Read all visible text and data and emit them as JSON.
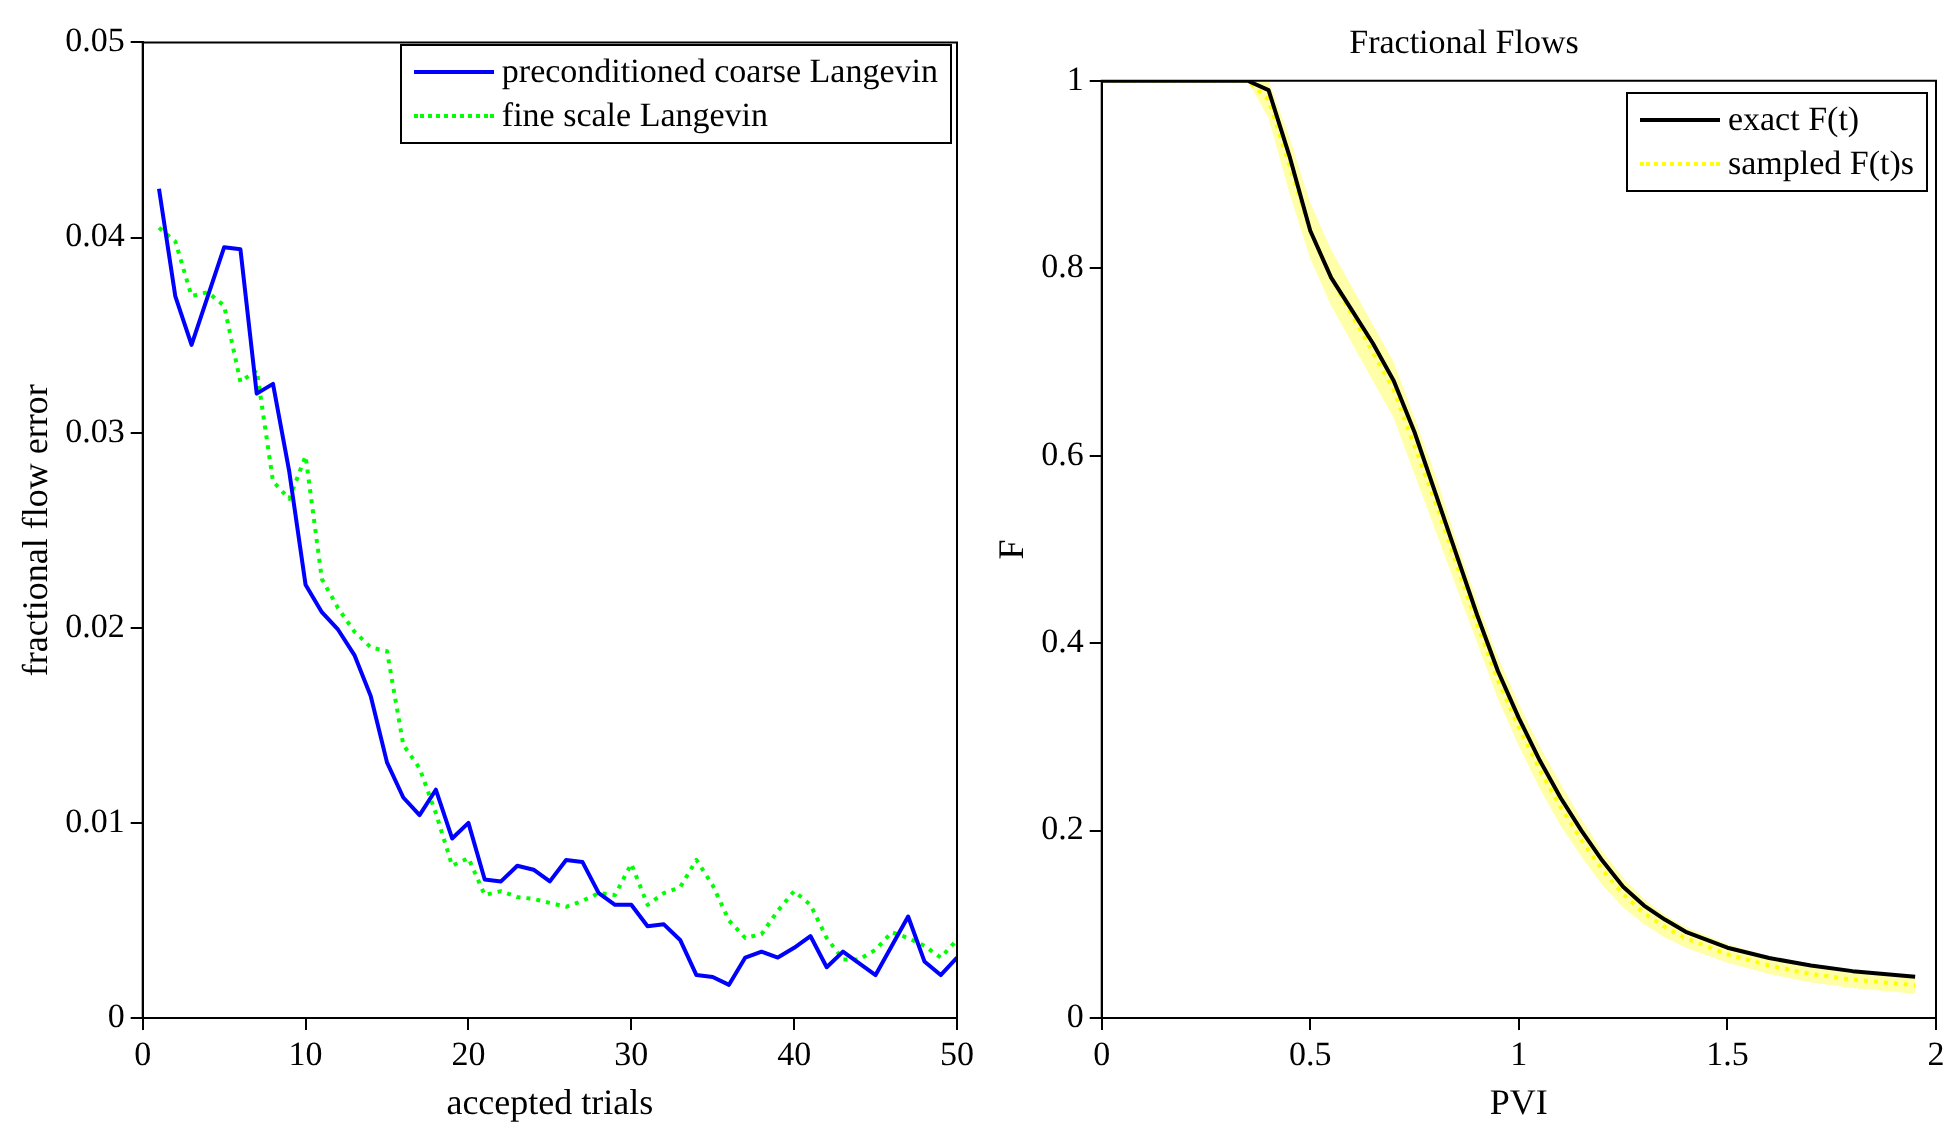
{
  "chart_data": [
    {
      "type": "line",
      "xlabel": "accepted trials",
      "ylabel": "fractional flow error",
      "x": [
        1,
        2,
        3,
        4,
        5,
        6,
        7,
        8,
        9,
        10,
        11,
        12,
        13,
        14,
        15,
        16,
        17,
        18,
        19,
        20,
        21,
        22,
        23,
        24,
        25,
        26,
        27,
        28,
        29,
        30,
        31,
        32,
        33,
        34,
        35,
        36,
        37,
        38,
        39,
        40,
        41,
        42,
        43,
        44,
        45,
        46,
        47,
        48,
        49,
        50
      ],
      "series": [
        {
          "name": "preconditioned coarse Langevin",
          "color": "#0000ff",
          "line_style": "solid",
          "values": [
            0.0425,
            0.037,
            0.0345,
            0.037,
            0.0395,
            0.0394,
            0.032,
            0.0325,
            0.028,
            0.0222,
            0.0208,
            0.0199,
            0.0186,
            0.0165,
            0.0131,
            0.0113,
            0.0104,
            0.0117,
            0.0092,
            0.01,
            0.0071,
            0.007,
            0.0078,
            0.0076,
            0.007,
            0.0081,
            0.008,
            0.0064,
            0.0058,
            0.0058,
            0.0047,
            0.0048,
            0.004,
            0.0022,
            0.0021,
            0.0017,
            0.0031,
            0.0034,
            0.0031,
            0.0036,
            0.0042,
            0.0026,
            0.0034,
            0.0028,
            0.0022,
            0.0037,
            0.0052,
            0.0029,
            0.0022,
            0.0031
          ]
        },
        {
          "name": "fine scale Langevin",
          "color": "#00ff00",
          "line_style": "dotted",
          "values": [
            0.0405,
            0.0398,
            0.037,
            0.0372,
            0.0365,
            0.0326,
            0.0332,
            0.0275,
            0.0266,
            0.0288,
            0.0225,
            0.021,
            0.0198,
            0.019,
            0.0188,
            0.014,
            0.0128,
            0.0105,
            0.0078,
            0.0082,
            0.0063,
            0.0065,
            0.0062,
            0.0061,
            0.0059,
            0.0057,
            0.006,
            0.0064,
            0.0063,
            0.0079,
            0.0058,
            0.0064,
            0.0067,
            0.0081,
            0.0068,
            0.005,
            0.0041,
            0.0043,
            0.0055,
            0.0065,
            0.0058,
            0.0041,
            0.003,
            0.003,
            0.0035,
            0.0044,
            0.0041,
            0.0037,
            0.0031,
            0.004
          ]
        }
      ],
      "xlim": [
        0,
        50
      ],
      "xticks": [
        0,
        10,
        20,
        30,
        40,
        50
      ],
      "ylim": [
        0,
        0.05
      ],
      "yticks": [
        0,
        0.01,
        0.02,
        0.03,
        0.04,
        0.05
      ],
      "grid": false,
      "legend": "top right"
    },
    {
      "type": "line",
      "title": "Fractional Flows",
      "xlabel": "PVI",
      "ylabel": "F",
      "series": [
        {
          "name": "exact F(t)",
          "color": "#000000",
          "line_style": "solid",
          "x": [
            0,
            0.35,
            0.4,
            0.45,
            0.5,
            0.55,
            0.6,
            0.65,
            0.7,
            0.75,
            0.8,
            0.85,
            0.9,
            0.95,
            1,
            1.05,
            1.1,
            1.15,
            1.2,
            1.25,
            1.3,
            1.35,
            1.4,
            1.5,
            1.6,
            1.7,
            1.8,
            1.95
          ],
          "values": [
            1,
            1,
            0.99,
            0.92,
            0.84,
            0.79,
            0.755,
            0.72,
            0.68,
            0.625,
            0.56,
            0.495,
            0.43,
            0.37,
            0.32,
            0.275,
            0.235,
            0.2,
            0.168,
            0.14,
            0.12,
            0.105,
            0.092,
            0.075,
            0.064,
            0.056,
            0.05,
            0.044
          ]
        },
        {
          "name": "sampled F(t)s",
          "color": "#ffff00",
          "line_style": "dotted",
          "x": [
            0,
            0.35,
            0.4,
            0.45,
            0.5,
            0.55,
            0.6,
            0.65,
            0.7,
            0.75,
            0.8,
            0.85,
            0.9,
            0.95,
            1,
            1.05,
            1.1,
            1.15,
            1.2,
            1.25,
            1.3,
            1.35,
            1.4,
            1.5,
            1.6,
            1.7,
            1.8,
            1.95
          ],
          "values": [
            1,
            1,
            0.98,
            0.91,
            0.84,
            0.79,
            0.75,
            0.71,
            0.67,
            0.61,
            0.55,
            0.485,
            0.42,
            0.36,
            0.31,
            0.265,
            0.225,
            0.19,
            0.158,
            0.132,
            0.112,
            0.097,
            0.085,
            0.068,
            0.056,
            0.047,
            0.041,
            0.035
          ],
          "lower": [
            1,
            1,
            0.96,
            0.88,
            0.81,
            0.76,
            0.72,
            0.68,
            0.64,
            0.58,
            0.52,
            0.46,
            0.4,
            0.34,
            0.29,
            0.245,
            0.205,
            0.172,
            0.142,
            0.118,
            0.1,
            0.086,
            0.075,
            0.059,
            0.047,
            0.038,
            0.032,
            0.026
          ],
          "upper": [
            1,
            1,
            1,
            0.94,
            0.87,
            0.82,
            0.78,
            0.74,
            0.7,
            0.64,
            0.58,
            0.51,
            0.445,
            0.385,
            0.335,
            0.29,
            0.25,
            0.212,
            0.178,
            0.15,
            0.127,
            0.11,
            0.097,
            0.079,
            0.066,
            0.057,
            0.051,
            0.046
          ]
        }
      ],
      "xlim": [
        0,
        2
      ],
      "xticks": [
        0,
        0.5,
        1,
        1.5,
        2
      ],
      "ylim": [
        0,
        1
      ],
      "yticks": [
        0,
        0.2,
        0.4,
        0.6,
        0.8,
        1
      ],
      "grid": false,
      "legend": "top right"
    }
  ]
}
